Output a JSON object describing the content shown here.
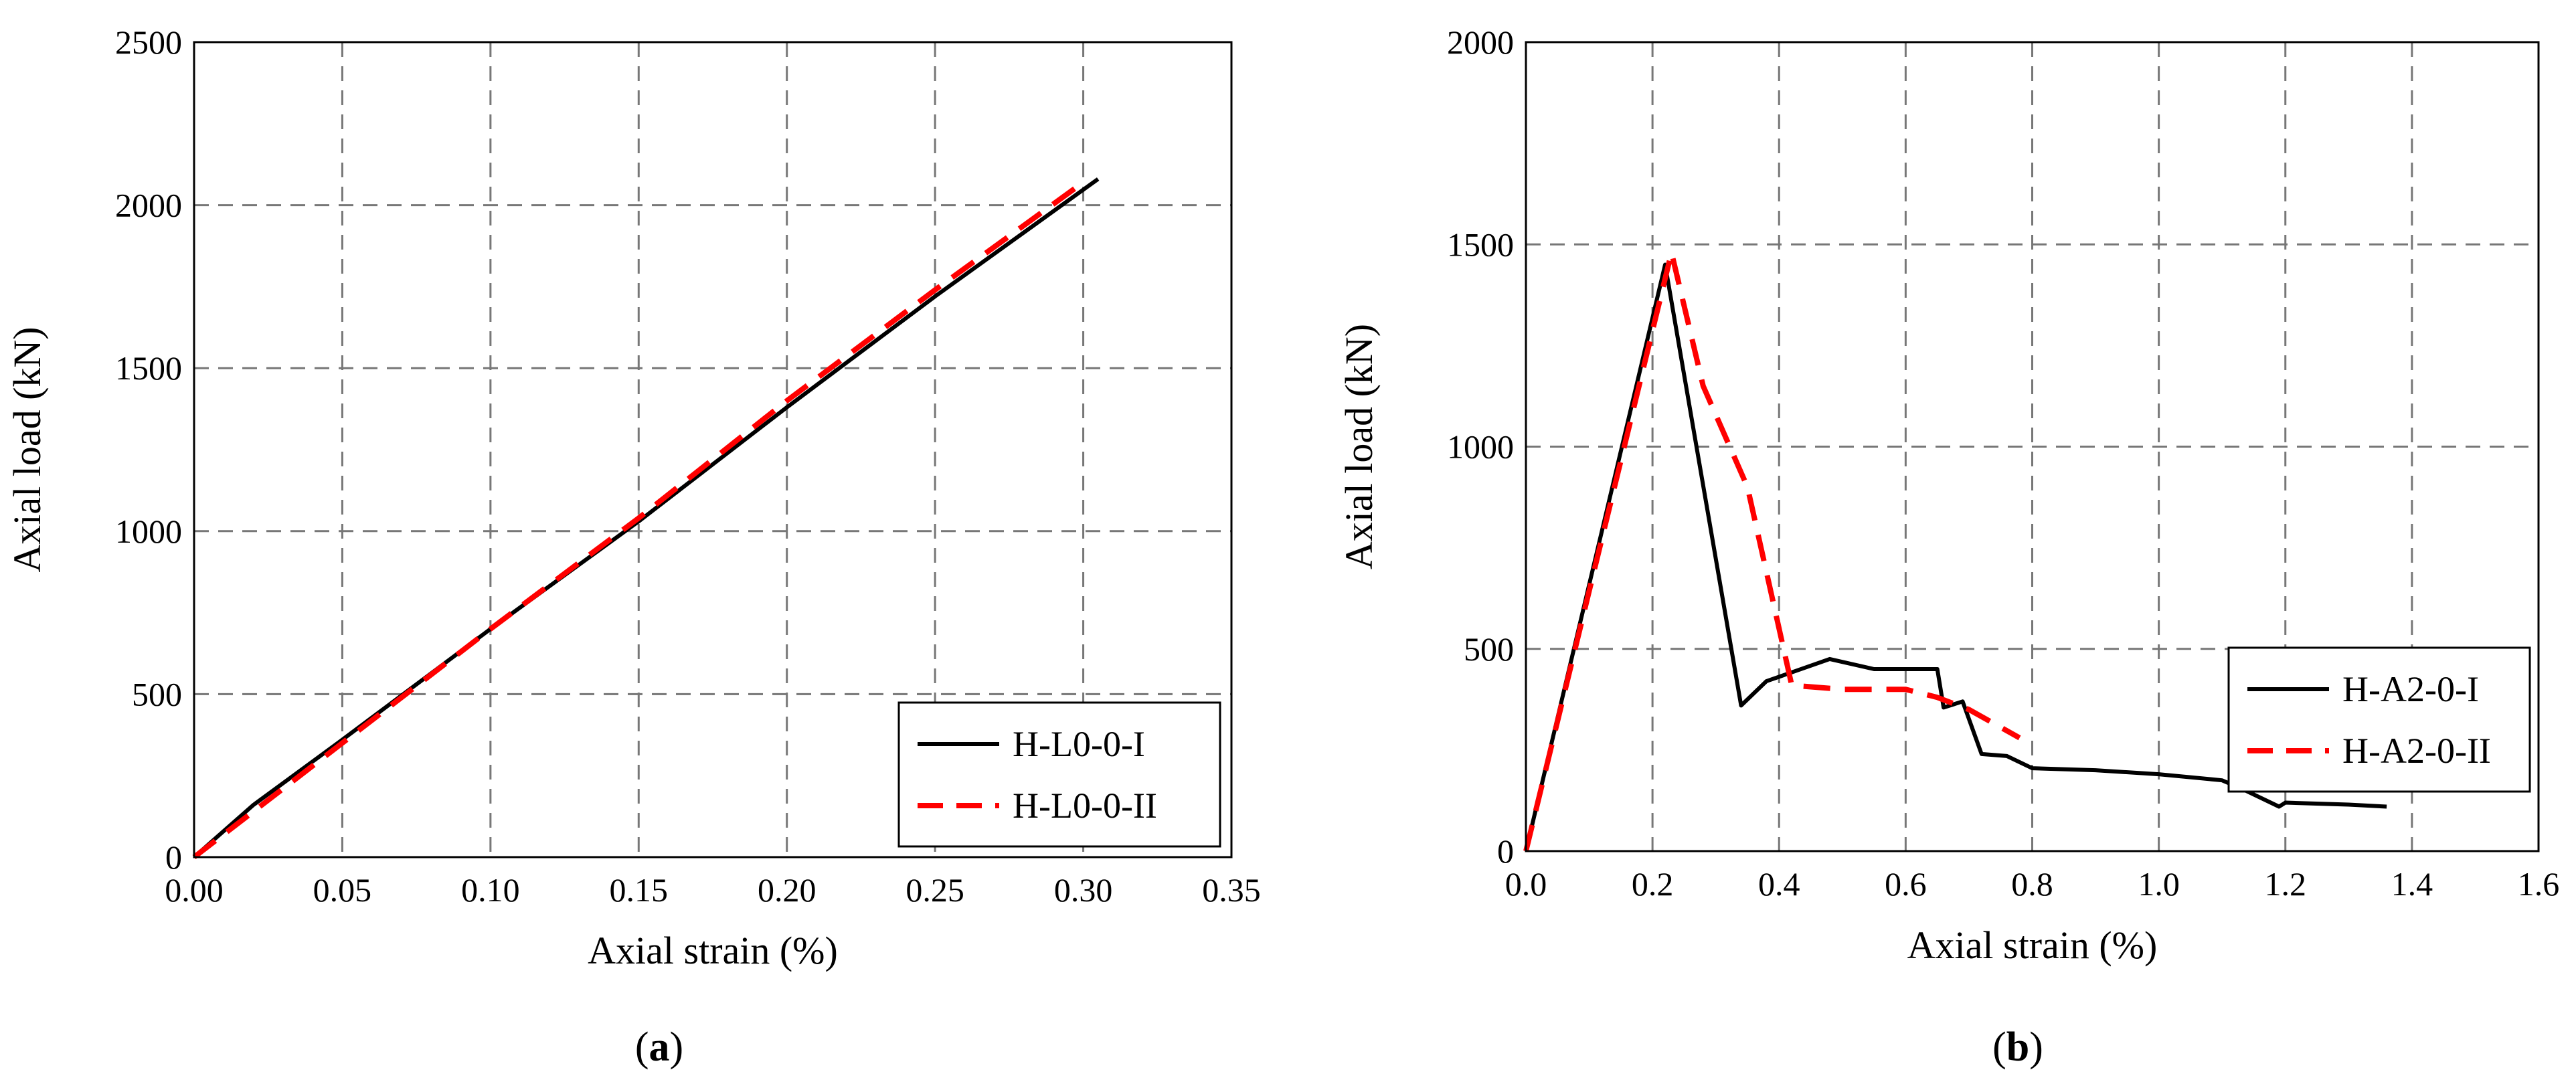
{
  "chart_data": [
    {
      "type": "line",
      "panel": "a",
      "xlabel": "Axial strain (%)",
      "ylabel": "Axial load (kN)",
      "xlim": [
        0,
        0.35
      ],
      "ylim": [
        0,
        2500
      ],
      "xticks": [
        "0.00",
        "0.05",
        "0.10",
        "0.15",
        "0.20",
        "0.25",
        "0.30",
        "0.35"
      ],
      "yticks": [
        "0",
        "500",
        "1000",
        "1500",
        "2000",
        "2500"
      ],
      "grid": true,
      "legend_position": "bottom-right",
      "series": [
        {
          "name": "H-L0-0-I",
          "style": "solid",
          "color": "#000000",
          "x": [
            0,
            0.02,
            0.05,
            0.1,
            0.15,
            0.2,
            0.25,
            0.305
          ],
          "y": [
            0,
            160,
            360,
            700,
            1030,
            1380,
            1720,
            2080
          ]
        },
        {
          "name": "H-L0-0-II",
          "style": "dashed",
          "color": "#ff0000",
          "x": [
            0,
            0.02,
            0.05,
            0.1,
            0.15,
            0.2,
            0.25,
            0.3
          ],
          "y": [
            0,
            140,
            350,
            700,
            1040,
            1400,
            1740,
            2070
          ]
        }
      ]
    },
    {
      "type": "line",
      "panel": "b",
      "xlabel": "Axial strain (%)",
      "ylabel": "Axial load (kN)",
      "xlim": [
        0,
        1.6
      ],
      "ylim": [
        0,
        2000
      ],
      "xticks": [
        "0.0",
        "0.2",
        "0.4",
        "0.6",
        "0.8",
        "1.0",
        "1.2",
        "1.4",
        "1.6"
      ],
      "yticks": [
        "0",
        "500",
        "1000",
        "1500",
        "2000"
      ],
      "grid": true,
      "legend_position": "right",
      "series": [
        {
          "name": "H-A2-0-I",
          "style": "solid",
          "color": "#000000",
          "x": [
            0,
            0.22,
            0.34,
            0.38,
            0.48,
            0.55,
            0.65,
            0.66,
            0.69,
            0.72,
            0.76,
            0.8,
            0.9,
            1.0,
            1.1,
            1.13,
            1.19,
            1.2,
            1.3,
            1.36
          ],
          "y": [
            0,
            1450,
            360,
            420,
            475,
            450,
            450,
            355,
            370,
            240,
            235,
            205,
            200,
            190,
            175,
            155,
            110,
            120,
            115,
            110
          ]
        },
        {
          "name": "H-A2-0-II",
          "style": "dashed",
          "color": "#ff0000",
          "x": [
            0,
            0.23,
            0.28,
            0.35,
            0.42,
            0.5,
            0.6,
            0.65,
            0.7,
            0.78
          ],
          "y": [
            0,
            1480,
            1150,
            900,
            410,
            400,
            400,
            380,
            350,
            280
          ]
        }
      ]
    }
  ],
  "panel_labels": [
    {
      "open": "(",
      "letter": "a",
      "close": ")"
    },
    {
      "open": "(",
      "letter": "b",
      "close": ")"
    }
  ]
}
